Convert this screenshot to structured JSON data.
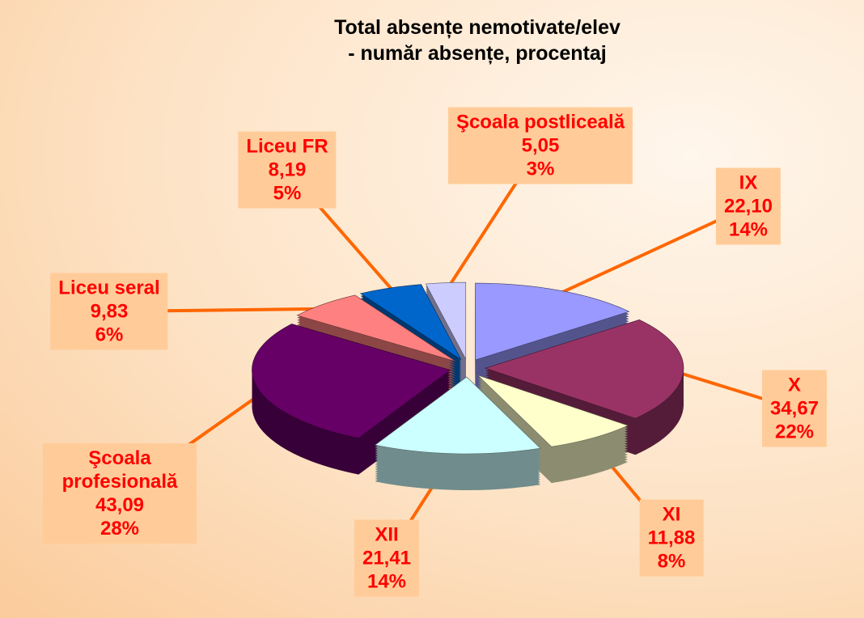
{
  "chart_data": {
    "type": "pie3d",
    "title": "Total absențe nemotivate/elev\n- număr absențe, procentaj",
    "categories": [
      "IX",
      "X",
      "XI",
      "XII",
      "Şcoala profesională",
      "Liceu seral",
      "Liceu FR",
      "Şcoala postliceală"
    ],
    "values": [
      22.1,
      34.67,
      11.88,
      21.41,
      43.09,
      9.83,
      8.19,
      5.05
    ],
    "value_labels": [
      "22,10",
      "34,67",
      "11,88",
      "21,41",
      "43,09",
      "9,83",
      "8,19",
      "5,05"
    ],
    "percentages": [
      14,
      22,
      8,
      14,
      28,
      6,
      5,
      3
    ],
    "percentage_labels": [
      "14%",
      "22%",
      "8%",
      "14%",
      "28%",
      "6%",
      "5%",
      "3%"
    ],
    "colors": [
      "#9999ff",
      "#993366",
      "#ffffcc",
      "#ccffff",
      "#660066",
      "#ff8080",
      "#0066cc",
      "#ccccff"
    ]
  }
}
